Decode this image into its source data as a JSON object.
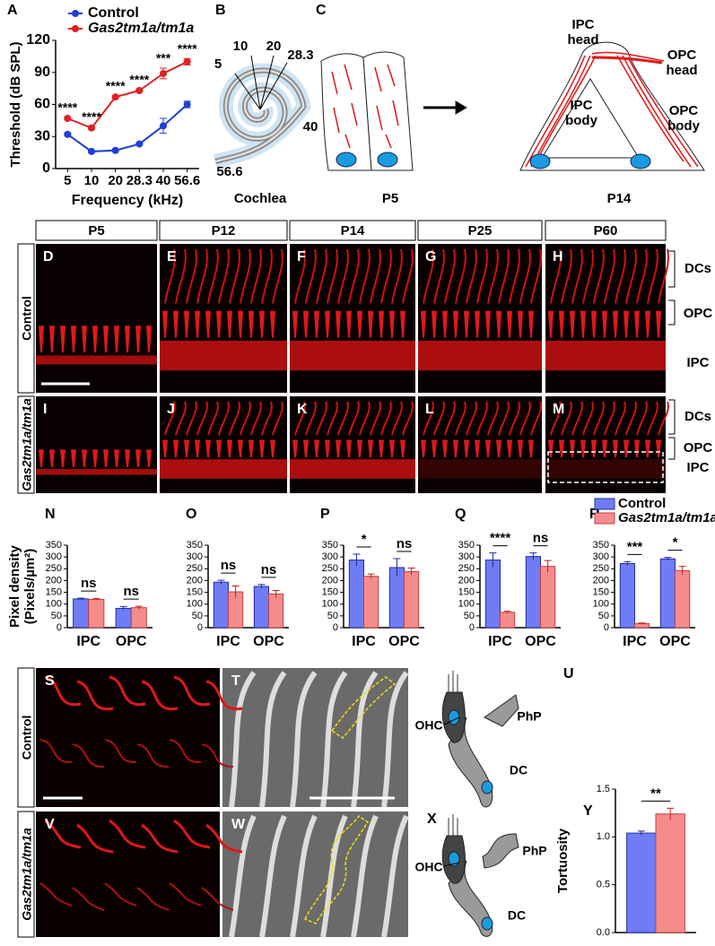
{
  "chart_data": [
    {
      "type": "line",
      "ylabel": "Threshold (dB SPL)",
      "xlabel": "Frequency (kHz)",
      "categories": [
        "5",
        "10",
        "20",
        "28.3",
        "40",
        "56.6"
      ],
      "ylim": [
        0,
        120
      ],
      "yticks": [
        0,
        30,
        60,
        90,
        120
      ],
      "legend": "top-left",
      "series": [
        {
          "name": "Control",
          "color": "#1f3fd6",
          "values": [
            32,
            16,
            17,
            23,
            40,
            60
          ],
          "errors": [
            1,
            1,
            1,
            1,
            7,
            3
          ]
        },
        {
          "name": "Gas2tm1a/tm1a",
          "color": "#e02020",
          "values": [
            47,
            38,
            67,
            73,
            89,
            100
          ],
          "errors": [
            1,
            1,
            1,
            1,
            5,
            3
          ],
          "annotations": [
            "****",
            "****",
            "****",
            "****",
            "***",
            "****"
          ]
        }
      ]
    },
    {
      "type": "bar",
      "ylabel": [
        "Pixel density",
        "(Pixels/µm²)"
      ],
      "categories": [
        "IPC",
        "OPC"
      ],
      "ylim": [
        0,
        350
      ],
      "yticks": [
        0,
        50,
        100,
        150,
        200,
        250,
        300,
        350
      ],
      "annotations": [
        "ns",
        "ns"
      ],
      "series": [
        {
          "name": "Control",
          "color": "#6f7cf5",
          "values": [
            122,
            82
          ],
          "errors": [
            3,
            8
          ]
        },
        {
          "name": "Gas2tm1a/tm1a",
          "color": "#f58c8c",
          "values": [
            120,
            85
          ],
          "errors": [
            4,
            6
          ]
        }
      ]
    },
    {
      "type": "bar",
      "categories": [
        "IPC",
        "OPC"
      ],
      "ylim": [
        0,
        350
      ],
      "yticks": [
        0,
        50,
        100,
        150,
        200,
        250,
        300,
        350
      ],
      "annotations": [
        "ns",
        "ns"
      ],
      "series": [
        {
          "name": "Control",
          "color": "#6f7cf5",
          "values": [
            193,
            175
          ],
          "errors": [
            8,
            8
          ]
        },
        {
          "name": "Gas2tm1a/tm1a",
          "color": "#f58c8c",
          "values": [
            152,
            143
          ],
          "errors": [
            25,
            15
          ]
        }
      ]
    },
    {
      "type": "bar",
      "categories": [
        "IPC",
        "OPC"
      ],
      "ylim": [
        0,
        350
      ],
      "yticks": [
        0,
        50,
        100,
        150,
        200,
        250,
        300,
        350
      ],
      "annotations": [
        "*",
        "ns"
      ],
      "series": [
        {
          "name": "Control",
          "color": "#6f7cf5",
          "values": [
            287,
            255
          ],
          "errors": [
            25,
            38
          ]
        },
        {
          "name": "Gas2tm1a/tm1a",
          "color": "#f58c8c",
          "values": [
            218,
            238
          ],
          "errors": [
            10,
            15
          ]
        }
      ]
    },
    {
      "type": "bar",
      "categories": [
        "IPC",
        "OPC"
      ],
      "ylim": [
        0,
        350
      ],
      "yticks": [
        0,
        50,
        100,
        150,
        200,
        250,
        300,
        350
      ],
      "annotations": [
        "****",
        "ns"
      ],
      "series": [
        {
          "name": "Control",
          "color": "#6f7cf5",
          "values": [
            287,
            302
          ],
          "errors": [
            30,
            15
          ]
        },
        {
          "name": "Gas2tm1a/tm1a",
          "color": "#f58c8c",
          "values": [
            65,
            260
          ],
          "errors": [
            5,
            25
          ]
        }
      ]
    },
    {
      "type": "bar",
      "categories": [
        "IPC",
        "OPC"
      ],
      "legend": "top",
      "ylim": [
        0,
        350
      ],
      "yticks": [
        0,
        50,
        100,
        150,
        200,
        250,
        300,
        350
      ],
      "annotations": [
        "***",
        "*"
      ],
      "series": [
        {
          "name": "Control",
          "color": "#6f7cf5",
          "values": [
            272,
            292
          ],
          "errors": [
            8,
            6
          ]
        },
        {
          "name": "Gas2tm1a/tm1a",
          "color": "#f58c8c",
          "values": [
            17,
            242
          ],
          "errors": [
            3,
            18
          ]
        }
      ]
    },
    {
      "type": "bar",
      "ylabel": [
        "Tortuosity"
      ],
      "categories": [
        null
      ],
      "ylim": [
        0,
        1.5
      ],
      "yticks": [
        {
          "value": 0,
          "label": "0.0"
        },
        0.5,
        {
          "value": 1,
          "label": "1.0"
        },
        1.5
      ],
      "annotations": [
        "**"
      ],
      "series": [
        {
          "name": "Control",
          "color": "#6f7cf5",
          "values": [
            1.04
          ],
          "errors": [
            0.02
          ]
        },
        {
          "name": "Gas2tm1a/tm1a",
          "color": "#f58c8c",
          "values": [
            1.24
          ],
          "errors": [
            0.06
          ]
        }
      ]
    }
  ],
  "panel_letters": [
    "A",
    "B",
    "C",
    "D",
    "E",
    "F",
    "G",
    "H",
    "I",
    "J",
    "K",
    "L",
    "M",
    "N",
    "O",
    "P",
    "Q",
    "R",
    "S",
    "T",
    "U",
    "V",
    "W",
    "X",
    "Y"
  ],
  "cochlea": {
    "positions": [
      "5",
      "10",
      "20",
      "28.3",
      "40",
      "56.6"
    ],
    "label": "Cochlea"
  },
  "cell_diagram": {
    "stages": [
      "P5",
      "P14"
    ],
    "parts": [
      [
        "IPC",
        "head"
      ],
      [
        "OPC",
        "head"
      ],
      [
        "IPC",
        "body"
      ],
      [
        "OPC",
        "body"
      ]
    ]
  },
  "micrographs": {
    "ages": [
      "P5",
      "P12",
      "P14",
      "P25",
      "P60"
    ],
    "rows": [
      "Control",
      "Gas2tm1a/tm1a"
    ],
    "regions": [
      "DCs",
      "OPC",
      "IPC"
    ]
  },
  "sem": {
    "rows": [
      "Control",
      "Gas2tm1a/tm1a"
    ]
  },
  "schematic": {
    "labels": [
      "OHC",
      "PhP",
      "DC"
    ]
  }
}
